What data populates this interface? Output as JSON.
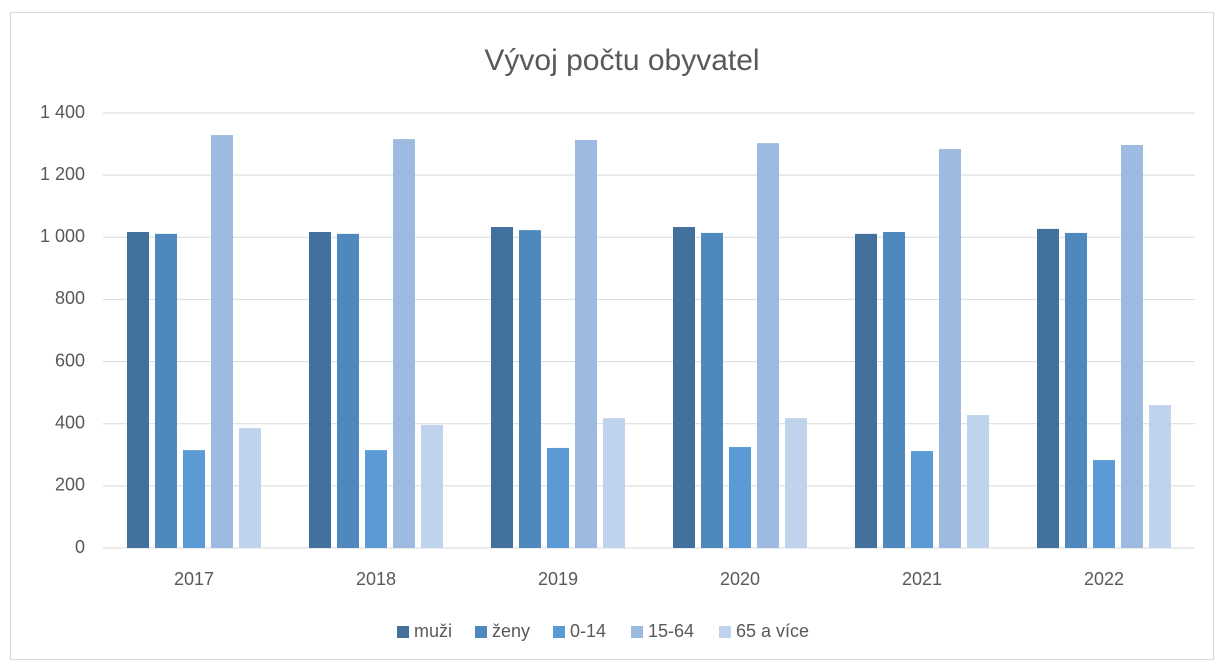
{
  "chart_data": {
    "type": "bar",
    "title": "Vývoj počtu obyvatel",
    "categories": [
      "2017",
      "2018",
      "2019",
      "2020",
      "2021",
      "2022"
    ],
    "series": [
      {
        "name": "muži",
        "color": "#41719c",
        "values": [
          1017,
          1017,
          1033,
          1033,
          1011,
          1027
        ]
      },
      {
        "name": "ženy",
        "color": "#4e88bd",
        "values": [
          1011,
          1011,
          1023,
          1014,
          1017,
          1014
        ]
      },
      {
        "name": "0-14",
        "color": "#5b9bd5",
        "values": [
          315,
          315,
          322,
          325,
          312,
          283
        ]
      },
      {
        "name": "15-64",
        "color": "#9dbbe0",
        "values": [
          1329,
          1316,
          1313,
          1303,
          1284,
          1297
        ]
      },
      {
        "name": "65 a více",
        "color": "#c0d3ec",
        "values": [
          386,
          396,
          418,
          418,
          428,
          460
        ]
      }
    ],
    "ylim": [
      0,
      1400
    ],
    "yticks": [
      0,
      200,
      400,
      600,
      800,
      {
        "value": 1000,
        "label": "1 000"
      },
      {
        "value": 1200,
        "label": "1 200"
      },
      {
        "value": 1400,
        "label": "1 400"
      }
    ],
    "grid": true,
    "legend": "bottom"
  }
}
